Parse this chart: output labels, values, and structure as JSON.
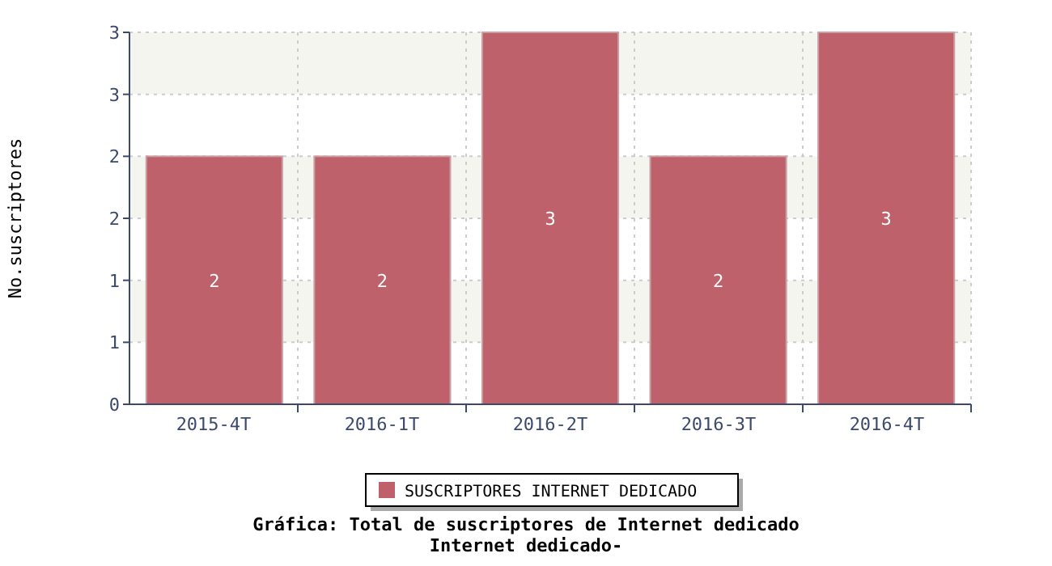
{
  "chart_data": {
    "type": "bar",
    "title": "Gráfica: Total de suscriptores de Internet dedicado",
    "subtitle": "Internet dedicado-",
    "ylabel": "No.suscriptores",
    "categories": [
      "2015-4T",
      "2016-1T",
      "2016-2T",
      "2016-3T",
      "2016-4T"
    ],
    "series": [
      {
        "name": "SUSCRIPTORES INTERNET DEDICADO",
        "color": "#bf616a",
        "values": [
          2,
          2,
          3,
          2,
          3
        ]
      }
    ],
    "ylim": [
      0,
      3
    ],
    "yticks": [
      0,
      {
        "value": 0.5,
        "label": "1"
      },
      1,
      {
        "value": 1.5,
        "label": "2"
      },
      2,
      {
        "value": 2.5,
        "label": "3"
      },
      3
    ],
    "grid": true,
    "legend": "bottom",
    "data_labels": true
  }
}
